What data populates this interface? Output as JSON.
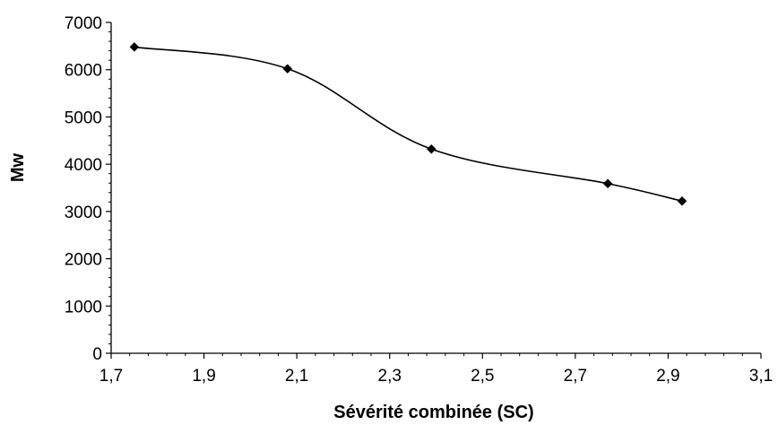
{
  "chart_data": {
    "type": "line",
    "title": "",
    "xlabel": "Sévérité combinée (SC)",
    "ylabel": "Mw",
    "xlim": [
      1.7,
      3.1
    ],
    "ylim": [
      0,
      7000
    ],
    "x_ticks": [
      "1,7",
      "1,9",
      "2,1",
      "2,3",
      "2,5",
      "2,7",
      "2,9",
      "3,1"
    ],
    "y_ticks": [
      "0",
      "1000",
      "2000",
      "3000",
      "4000",
      "5000",
      "6000",
      "7000"
    ],
    "grid": false,
    "legend": "none",
    "line_style": "smooth",
    "marker": "diamond",
    "color": "#000000",
    "series": [
      {
        "x": [
          1.75,
          2.08,
          2.39,
          2.77,
          2.93
        ],
        "y": [
          6480,
          6020,
          4320,
          3590,
          3220
        ]
      }
    ]
  }
}
